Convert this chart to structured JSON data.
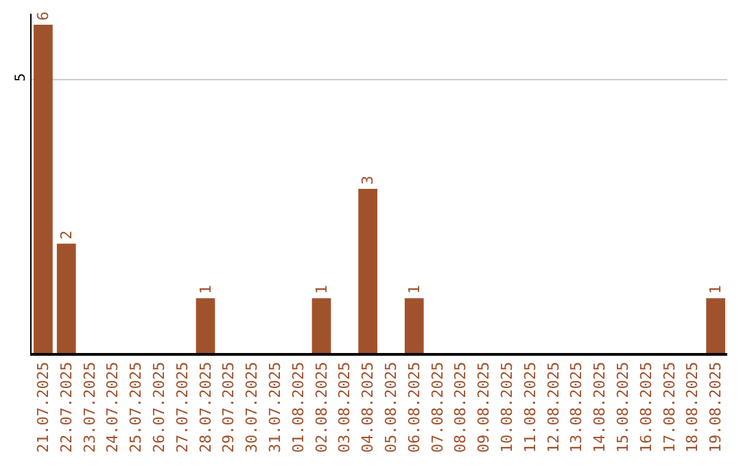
{
  "chart_data": {
    "type": "bar",
    "categories": [
      "21.07.2025",
      "22.07.2025",
      "23.07.2025",
      "24.07.2025",
      "25.07.2025",
      "26.07.2025",
      "27.07.2025",
      "28.07.2025",
      "29.07.2025",
      "30.07.2025",
      "31.07.2025",
      "01.08.2025",
      "02.08.2025",
      "03.08.2025",
      "04.08.2025",
      "05.08.2025",
      "06.08.2025",
      "07.08.2025",
      "08.08.2025",
      "09.08.2025",
      "10.08.2025",
      "11.08.2025",
      "12.08.2025",
      "13.08.2025",
      "14.08.2025",
      "15.08.2025",
      "16.08.2025",
      "17.08.2025",
      "18.08.2025",
      "19.08.2025"
    ],
    "series": [
      {
        "color": "#a0522d",
        "values": [
          6,
          2,
          0,
          0,
          0,
          0,
          0,
          1,
          0,
          0,
          0,
          0,
          1,
          0,
          3,
          0,
          1,
          0,
          0,
          0,
          0,
          0,
          0,
          0,
          0,
          0,
          0,
          0,
          0,
          1
        ]
      }
    ],
    "value_labels": [
      "6",
      "2",
      null,
      null,
      null,
      null,
      null,
      "1",
      null,
      null,
      null,
      null,
      "1",
      null,
      "3",
      null,
      "1",
      null,
      null,
      null,
      null,
      null,
      null,
      null,
      null,
      null,
      null,
      null,
      null,
      "1"
    ],
    "ylim": [
      0,
      6.2
    ],
    "yticks": [
      5
    ],
    "grid": "y",
    "legend": false
  }
}
